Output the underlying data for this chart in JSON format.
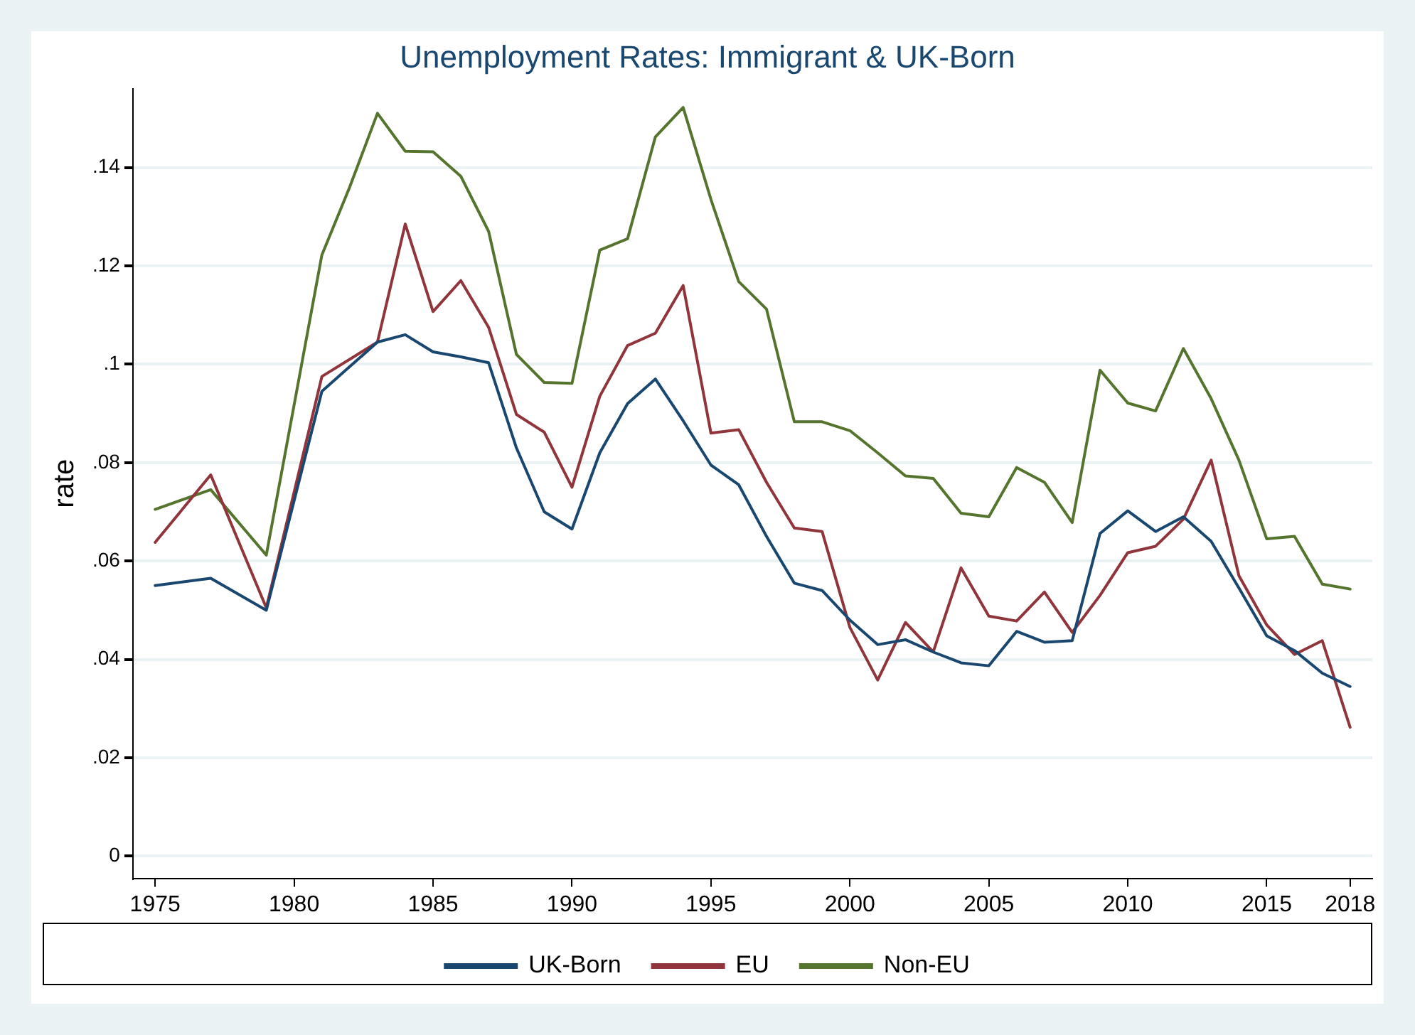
{
  "chart_data": {
    "type": "line",
    "title": "Unemployment Rates: Immigrant & UK-Born",
    "ylabel": "rate",
    "x": [
      1975,
      1977,
      1979,
      1981,
      1982,
      1983,
      1984,
      1985,
      1986,
      1987,
      1988,
      1989,
      1990,
      1991,
      1992,
      1993,
      1994,
      1995,
      1996,
      1997,
      1998,
      1999,
      2000,
      2001,
      2002,
      2003,
      2004,
      2005,
      2006,
      2007,
      2008,
      2009,
      2010,
      2011,
      2012,
      2013,
      2014,
      2015,
      2016,
      2017,
      2018
    ],
    "series": [
      {
        "name": "UK-Born",
        "color": "#1a476f",
        "values": [
          0.055,
          0.0565,
          0.05,
          0.0945,
          0.0995,
          0.1045,
          0.106,
          0.1025,
          0.1015,
          0.1003,
          0.083,
          0.07,
          0.0665,
          0.082,
          0.092,
          0.097,
          0.0885,
          0.0795,
          0.0755,
          0.065,
          0.0555,
          0.054,
          0.048,
          0.043,
          0.044,
          0.0415,
          0.0393,
          0.0387,
          0.0457,
          0.0435,
          0.0438,
          0.0656,
          0.0702,
          0.066,
          0.069,
          0.064,
          0.0545,
          0.0448,
          0.0418,
          0.0372,
          0.0345
        ]
      },
      {
        "name": "EU",
        "color": "#90353b",
        "values": [
          0.0638,
          0.0775,
          0.0505,
          0.0975,
          0.101,
          0.1045,
          0.1285,
          0.1107,
          0.117,
          0.1075,
          0.0898,
          0.0862,
          0.075,
          0.0935,
          0.1038,
          0.1063,
          0.116,
          0.086,
          0.0867,
          0.076,
          0.0667,
          0.066,
          0.0465,
          0.0358,
          0.0475,
          0.0415,
          0.0586,
          0.0488,
          0.0478,
          0.0537,
          0.0455,
          0.053,
          0.0617,
          0.063,
          0.0685,
          0.0805,
          0.057,
          0.047,
          0.041,
          0.0438,
          0.0262
        ]
      },
      {
        "name": "Non-EU",
        "color": "#55752f",
        "values": [
          0.0705,
          0.0745,
          0.0612,
          0.1222,
          0.136,
          0.151,
          0.1433,
          0.1432,
          0.1382,
          0.127,
          0.102,
          0.0963,
          0.0961,
          0.1232,
          0.1255,
          0.1462,
          0.1522,
          0.1335,
          0.1168,
          0.1112,
          0.0883,
          0.0883,
          0.0865,
          0.082,
          0.0773,
          0.0768,
          0.0697,
          0.069,
          0.079,
          0.076,
          0.0678,
          0.0988,
          0.0921,
          0.0905,
          0.1032,
          0.093,
          0.0805,
          0.0645,
          0.065,
          0.0553,
          0.0543
        ]
      }
    ],
    "xlim": [
      1974.2,
      2018.8
    ],
    "xticks": [
      1975,
      1980,
      1985,
      1990,
      1995,
      2000,
      2005,
      2010,
      2015,
      2018
    ],
    "ylim": [
      -0.0045,
      0.156
    ],
    "yticks": [
      {
        "value": 0,
        "label": "0"
      },
      {
        "value": 0.02,
        "label": ".02"
      },
      {
        "value": 0.04,
        "label": ".04"
      },
      {
        "value": 0.06,
        "label": ".06"
      },
      {
        "value": 0.08,
        "label": ".08"
      },
      {
        "value": 0.1,
        "label": ".1"
      },
      {
        "value": 0.12,
        "label": ".12"
      },
      {
        "value": 0.14,
        "label": ".14"
      }
    ],
    "grid": "y",
    "legend": "bottom",
    "marker": "none",
    "line_style": "solid"
  }
}
